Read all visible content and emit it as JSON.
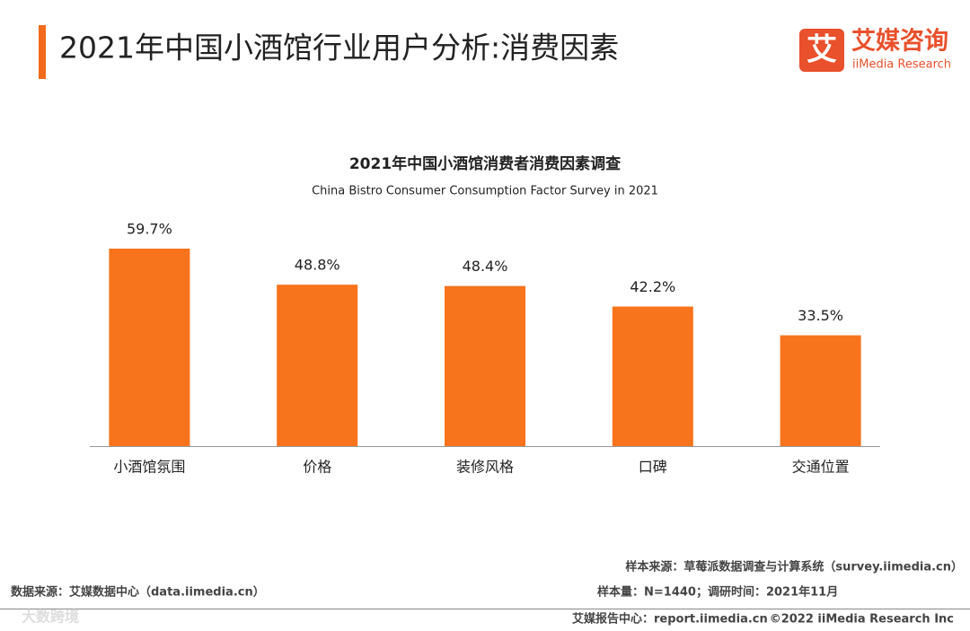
{
  "header": {
    "title": "2021年中国小酒馆行业用户分析:消费因素"
  },
  "logo": {
    "mark": "艾",
    "name": "艾媒咨询",
    "english": "iiMedia Research"
  },
  "chart_data": {
    "type": "bar",
    "title": "2021年中国小酒馆消费者消费因素调查",
    "subtitle": "China Bistro Consumer Consumption Factor Survey in 2021",
    "categories": [
      "小酒馆氛围",
      "价格",
      "装修风格",
      "口碑",
      "交通位置"
    ],
    "values": [
      59.7,
      48.8,
      48.4,
      42.2,
      33.5
    ],
    "value_labels": [
      "59.7%",
      "48.8%",
      "48.4%",
      "42.2%",
      "33.5%"
    ],
    "color": "#f7731c"
  },
  "footer": {
    "sample_source": "样本来源：草莓派数据调查与计算系统（survey.iimedia.cn）",
    "sample_info": "样本量：N=1440；调研时间：2021年11月",
    "data_source": "数据来源：艾媒数据中心（data.iimedia.cn）",
    "report_center": "艾媒报告中心：report.iimedia.cn",
    "copyright": "©2022  iiMedia Research  Inc",
    "watermark": "大数跨境"
  }
}
